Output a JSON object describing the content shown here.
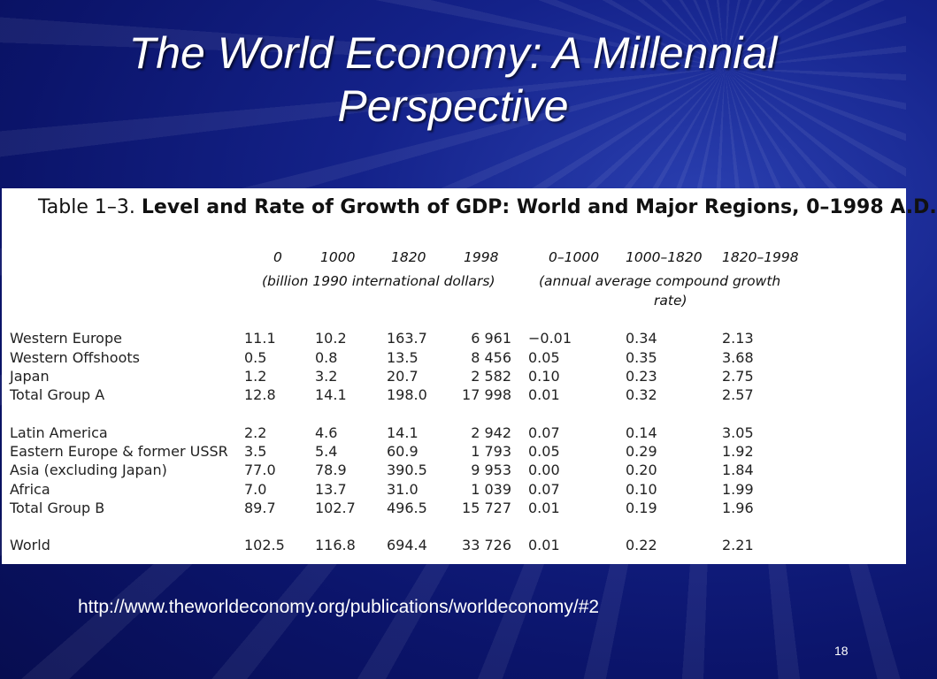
{
  "slide": {
    "title_line1": "The World Economy: A Millennial",
    "title_line2": "Perspective",
    "url": "http://www.theworldeconomy.org/publications/worldeconomy/#2",
    "slide_number": "18"
  },
  "table": {
    "caption_prefix": "Table 1–3.",
    "caption_title": "Level and Rate of Growth of GDP: World and Major Regions, 0–1998 A.D.",
    "columns": [
      "0",
      "1000",
      "1820",
      "1998",
      "0–1000",
      "1000–1820",
      "1820–1998"
    ],
    "unit_level": "(billion 1990 international dollars)",
    "unit_rate_line1": "(annual average compound growth",
    "unit_rate_line2": "rate)",
    "rows": [
      {
        "region": "Western Europe",
        "values": [
          "11.1",
          "10.2",
          "163.7",
          "6 961",
          "−0.01",
          "0.34",
          "2.13"
        ]
      },
      {
        "region": "Western Offshoots",
        "values": [
          "0.5",
          "0.8",
          "13.5",
          "8 456",
          "0.05",
          "0.35",
          "3.68"
        ]
      },
      {
        "region": "Japan",
        "values": [
          "1.2",
          "3.2",
          "20.7",
          "2 582",
          "0.10",
          "0.23",
          "2.75"
        ]
      },
      {
        "region": "Total Group A",
        "values": [
          "12.8",
          "14.1",
          "198.0",
          "17 998",
          "0.01",
          "0.32",
          "2.57"
        ]
      },
      {
        "region": "Latin America",
        "values": [
          "2.2",
          "4.6",
          "14.1",
          "2 942",
          "0.07",
          "0.14",
          "3.05"
        ]
      },
      {
        "region": "Eastern Europe & former USSR",
        "values": [
          "3.5",
          "5.4",
          "60.9",
          "1 793",
          "0.05",
          "0.29",
          "1.92"
        ]
      },
      {
        "region": "Asia (excluding Japan)",
        "values": [
          "77.0",
          "78.9",
          "390.5",
          "9 953",
          "0.00",
          "0.20",
          "1.84"
        ]
      },
      {
        "region": "Africa",
        "values": [
          "7.0",
          "13.7",
          "31.0",
          "1 039",
          "0.07",
          "0.10",
          "1.99"
        ]
      },
      {
        "region": "Total Group B",
        "values": [
          "89.7",
          "102.7",
          "496.5",
          "15 727",
          "0.01",
          "0.19",
          "1.96"
        ]
      },
      {
        "region": "World",
        "values": [
          "102.5",
          "116.8",
          "694.4",
          "33 726",
          "0.01",
          "0.22",
          "2.21"
        ]
      }
    ]
  }
}
